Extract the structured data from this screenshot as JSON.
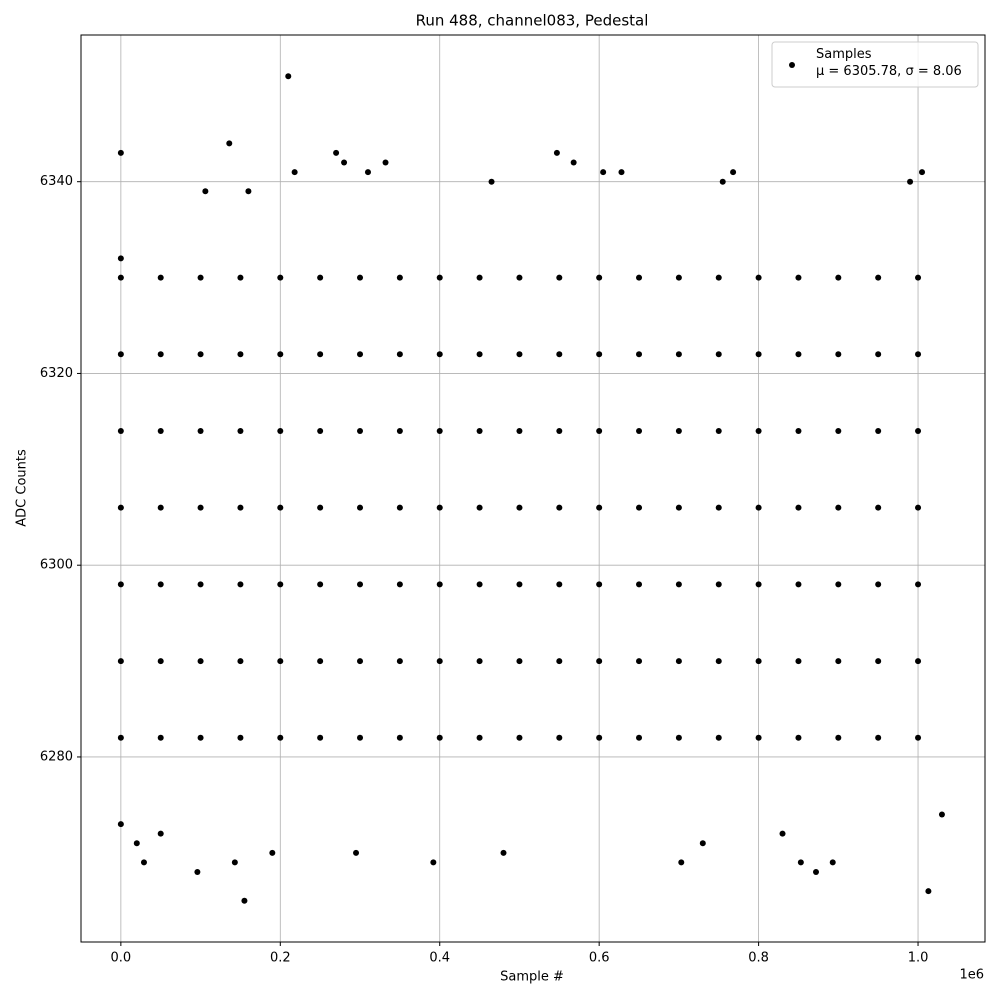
{
  "chart_data": {
    "type": "scatter",
    "title": "Run 488, channel083, Pedestal",
    "xlabel": "Sample #",
    "ylabel": "ADC Counts",
    "x_offset_label": "1e6",
    "xlim": [
      -50000,
      1084000
    ],
    "ylim": [
      6260.7,
      6355.3
    ],
    "xticks": [
      {
        "value": 0,
        "label": "0.0"
      },
      {
        "value": 200000,
        "label": "0.2"
      },
      {
        "value": 400000,
        "label": "0.4"
      },
      {
        "value": 600000,
        "label": "0.6"
      },
      {
        "value": 800000,
        "label": "0.8"
      },
      {
        "value": 1000000,
        "label": "1.0"
      }
    ],
    "yticks": [
      6280,
      6300,
      6320,
      6340
    ],
    "grid": true,
    "legend": "upper right",
    "series": [
      {
        "name": "Samples\nμ = 6305.78, σ = 8.06",
        "color": "#000000",
        "x": [
          0,
          0,
          20000,
          29000,
          96000,
          136000,
          143000,
          155000,
          190000,
          210000,
          218000,
          270000,
          280000,
          295000,
          310000,
          332000,
          392000,
          465000,
          480000,
          547000,
          568000,
          605000,
          628000,
          703000,
          768000,
          755000,
          853000,
          872000,
          893000,
          990000,
          1005000,
          1013000,
          1030000,
          160000,
          106000,
          0,
          50000,
          830000,
          730000,
          0,
          50000,
          100000,
          150000,
          200000,
          250000,
          300000,
          350000,
          400000,
          450000,
          500000,
          550000,
          600000,
          650000,
          700000,
          750000,
          800000,
          850000,
          900000,
          950000,
          1000000,
          0,
          50000,
          100000,
          150000,
          200000,
          250000,
          300000,
          350000,
          400000,
          450000,
          500000,
          550000,
          600000,
          650000,
          700000,
          750000,
          800000,
          850000,
          900000,
          950000,
          1000000,
          0,
          50000,
          100000,
          150000,
          200000,
          250000,
          300000,
          350000,
          400000,
          450000,
          500000,
          550000,
          600000,
          650000,
          700000,
          750000,
          800000,
          850000,
          900000,
          950000,
          1000000,
          0,
          50000,
          100000,
          150000,
          200000,
          250000,
          300000,
          350000,
          400000,
          450000,
          500000,
          550000,
          600000,
          650000,
          700000,
          750000,
          800000,
          850000,
          900000,
          950000,
          1000000,
          0,
          50000,
          100000,
          150000,
          200000,
          250000,
          300000,
          350000,
          400000,
          450000,
          500000,
          550000,
          600000,
          650000,
          700000,
          750000,
          800000,
          850000,
          900000,
          950000,
          1000000,
          0,
          50000,
          100000,
          150000,
          200000,
          250000,
          300000,
          350000,
          400000,
          450000,
          500000,
          550000,
          600000,
          650000,
          700000,
          750000,
          800000,
          850000,
          900000,
          950000,
          1000000,
          0,
          50000,
          100000,
          150000,
          200000,
          250000,
          300000,
          350000,
          400000,
          450000,
          500000,
          550000,
          600000,
          650000,
          700000,
          750000,
          800000,
          850000,
          900000,
          950000,
          1000000
        ],
        "values": [
          6343,
          6273,
          6271,
          6269,
          6268,
          6344,
          6269,
          6265,
          6270,
          6351,
          6341,
          6343,
          6342,
          6270,
          6341,
          6342,
          6269,
          6340,
          6270,
          6343,
          6342,
          6341,
          6341,
          6269,
          6341,
          6340,
          6269,
          6268,
          6269,
          6340,
          6341,
          6266,
          6274,
          6339,
          6339,
          6332,
          6272,
          6272,
          6271,
          6282,
          6282,
          6282,
          6282,
          6282,
          6282,
          6282,
          6282,
          6282,
          6282,
          6282,
          6282,
          6282,
          6282,
          6282,
          6282,
          6282,
          6282,
          6282,
          6282,
          6282,
          6290,
          6290,
          6290,
          6290,
          6290,
          6290,
          6290,
          6290,
          6290,
          6290,
          6290,
          6290,
          6290,
          6290,
          6290,
          6290,
          6290,
          6290,
          6290,
          6290,
          6290,
          6298,
          6298,
          6298,
          6298,
          6298,
          6298,
          6298,
          6298,
          6298,
          6298,
          6298,
          6298,
          6298,
          6298,
          6298,
          6298,
          6298,
          6298,
          6298,
          6298,
          6298,
          6306,
          6306,
          6306,
          6306,
          6306,
          6306,
          6306,
          6306,
          6306,
          6306,
          6306,
          6306,
          6306,
          6306,
          6306,
          6306,
          6306,
          6306,
          6306,
          6306,
          6306,
          6314,
          6314,
          6314,
          6314,
          6314,
          6314,
          6314,
          6314,
          6314,
          6314,
          6314,
          6314,
          6314,
          6314,
          6314,
          6314,
          6314,
          6314,
          6314,
          6314,
          6314,
          6322,
          6322,
          6322,
          6322,
          6322,
          6322,
          6322,
          6322,
          6322,
          6322,
          6322,
          6322,
          6322,
          6322,
          6322,
          6322,
          6322,
          6322,
          6322,
          6322,
          6322,
          6330,
          6330,
          6330,
          6330,
          6330,
          6330,
          6330,
          6330,
          6330,
          6330,
          6330,
          6330,
          6330,
          6330,
          6330,
          6330,
          6330,
          6330,
          6330,
          6330,
          6330
        ]
      }
    ]
  }
}
